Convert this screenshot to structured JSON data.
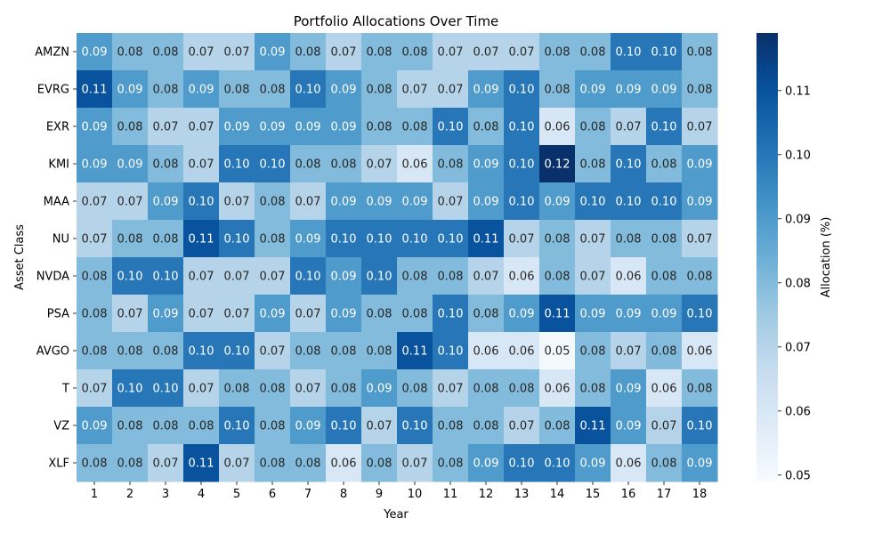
{
  "chart_data": {
    "type": "heatmap",
    "title": "Portfolio Allocations Over Time",
    "xlabel": "Year",
    "ylabel": "Asset Class",
    "x": [
      "1",
      "2",
      "3",
      "4",
      "5",
      "6",
      "7",
      "8",
      "9",
      "10",
      "11",
      "12",
      "13",
      "14",
      "15",
      "16",
      "17",
      "18"
    ],
    "y": [
      "AMZN",
      "EVRG",
      "EXR",
      "KMI",
      "MAA",
      "NU",
      "NVDA",
      "PSA",
      "AVGO",
      "T",
      "VZ",
      "XLF"
    ],
    "values": [
      [
        0.09,
        0.08,
        0.08,
        0.07,
        0.07,
        0.09,
        0.08,
        0.07,
        0.08,
        0.08,
        0.07,
        0.07,
        0.07,
        0.08,
        0.08,
        0.1,
        0.1,
        0.08
      ],
      [
        0.11,
        0.09,
        0.08,
        0.09,
        0.08,
        0.08,
        0.1,
        0.09,
        0.08,
        0.07,
        0.07,
        0.09,
        0.1,
        0.08,
        0.09,
        0.09,
        0.09,
        0.08
      ],
      [
        0.09,
        0.08,
        0.07,
        0.07,
        0.09,
        0.09,
        0.09,
        0.09,
        0.08,
        0.08,
        0.1,
        0.08,
        0.1,
        0.06,
        0.08,
        0.07,
        0.1,
        0.07
      ],
      [
        0.09,
        0.09,
        0.08,
        0.07,
        0.1,
        0.1,
        0.08,
        0.08,
        0.07,
        0.06,
        0.08,
        0.09,
        0.1,
        0.12,
        0.08,
        0.1,
        0.08,
        0.09
      ],
      [
        0.07,
        0.07,
        0.09,
        0.1,
        0.07,
        0.08,
        0.07,
        0.09,
        0.09,
        0.09,
        0.07,
        0.09,
        0.1,
        0.09,
        0.1,
        0.1,
        0.1,
        0.09
      ],
      [
        0.07,
        0.08,
        0.08,
        0.11,
        0.1,
        0.08,
        0.09,
        0.1,
        0.1,
        0.1,
        0.1,
        0.11,
        0.07,
        0.08,
        0.07,
        0.08,
        0.08,
        0.07
      ],
      [
        0.08,
        0.1,
        0.1,
        0.07,
        0.07,
        0.07,
        0.1,
        0.09,
        0.1,
        0.08,
        0.08,
        0.07,
        0.06,
        0.08,
        0.07,
        0.06,
        0.08,
        0.08
      ],
      [
        0.08,
        0.07,
        0.09,
        0.07,
        0.07,
        0.09,
        0.07,
        0.09,
        0.08,
        0.08,
        0.1,
        0.08,
        0.09,
        0.11,
        0.09,
        0.09,
        0.09,
        0.1
      ],
      [
        0.08,
        0.08,
        0.08,
        0.1,
        0.1,
        0.07,
        0.08,
        0.08,
        0.08,
        0.11,
        0.1,
        0.06,
        0.06,
        0.05,
        0.08,
        0.07,
        0.08,
        0.06
      ],
      [
        0.07,
        0.1,
        0.1,
        0.07,
        0.08,
        0.08,
        0.07,
        0.08,
        0.09,
        0.08,
        0.07,
        0.08,
        0.08,
        0.06,
        0.08,
        0.09,
        0.06,
        0.08
      ],
      [
        0.09,
        0.08,
        0.08,
        0.08,
        0.1,
        0.08,
        0.09,
        0.1,
        0.07,
        0.1,
        0.08,
        0.08,
        0.07,
        0.08,
        0.11,
        0.09,
        0.07,
        0.1
      ],
      [
        0.08,
        0.08,
        0.07,
        0.11,
        0.07,
        0.08,
        0.08,
        0.06,
        0.08,
        0.07,
        0.08,
        0.09,
        0.1,
        0.1,
        0.09,
        0.06,
        0.08,
        0.09
      ]
    ],
    "colorbar": {
      "label": "Allocation (%)",
      "min": 0.049,
      "max": 0.119,
      "ticks": [
        "0.05",
        "0.06",
        "0.07",
        "0.08",
        "0.09",
        "0.10",
        "0.11"
      ]
    },
    "colormap": "Blues",
    "colors": {
      "low": "#f7fbff",
      "high": "#08306b",
      "text_light": "#ffffff",
      "text_dark": "#262626"
    },
    "grid": false
  }
}
